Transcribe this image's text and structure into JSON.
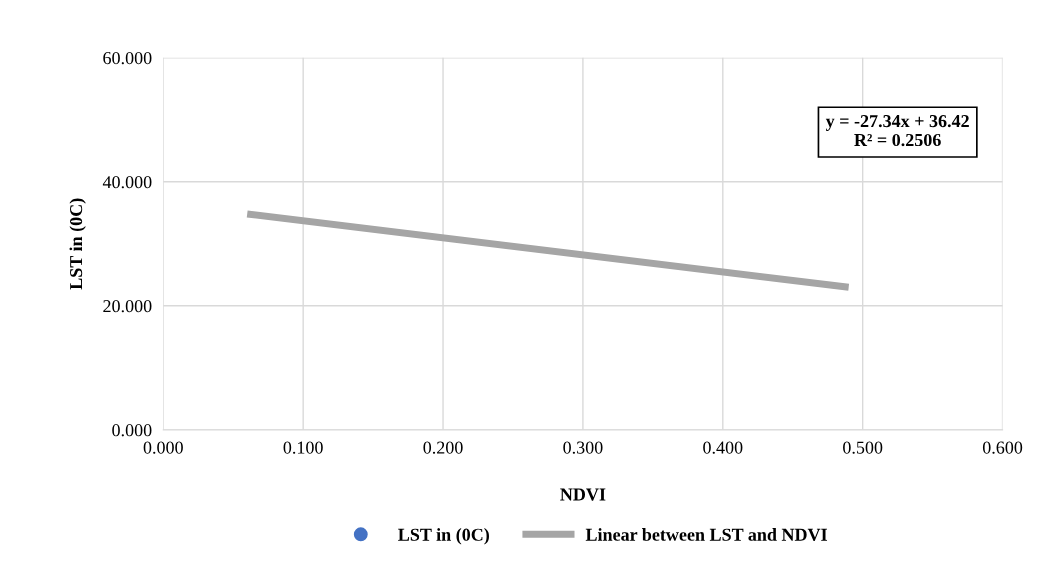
{
  "chart_data": {
    "type": "scatter",
    "xlabel": "NDVI",
    "ylabel": "LST in (0C)",
    "xlim": [
      0,
      0.6
    ],
    "ylim": [
      0,
      60
    ],
    "xticks": [
      {
        "value": 0,
        "label": "0.000"
      },
      {
        "value": 0.1,
        "label": "0.100"
      },
      {
        "value": 0.2,
        "label": "0.200"
      },
      {
        "value": 0.3,
        "label": "0.300"
      },
      {
        "value": 0.4,
        "label": "0.400"
      },
      {
        "value": 0.5,
        "label": "0.500"
      },
      {
        "value": 0.6,
        "label": "0.600"
      }
    ],
    "yticks": [
      {
        "value": 0,
        "label": "0.000"
      },
      {
        "value": 20,
        "label": "20.000"
      },
      {
        "value": 40,
        "label": "40.000"
      },
      {
        "value": 60,
        "label": "60.000"
      }
    ],
    "grid": true,
    "legend": "bottom",
    "series": [
      {
        "name": "LST in (0C)",
        "color": "#4472c4",
        "marker": "circle"
      },
      {
        "name": "Linear between LST and NDVI",
        "type": "line",
        "color": "#a5a5a5",
        "marker": "none",
        "x": [
          0.06,
          0.49
        ],
        "values": [
          34.8,
          23.0
        ]
      }
    ],
    "annotations": [
      "y = -27.34x + 36.42\nR² = 0.2506"
    ]
  }
}
